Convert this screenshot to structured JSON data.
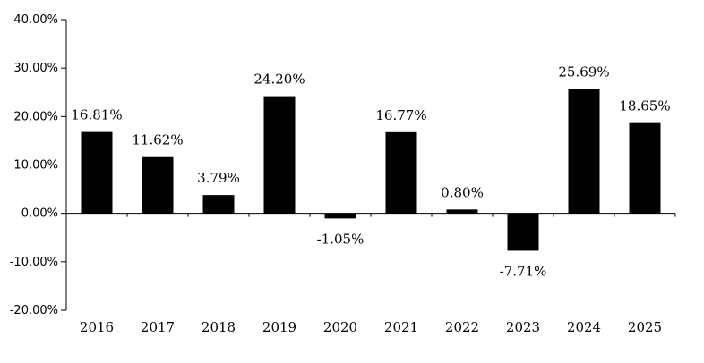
{
  "chart_data": {
    "type": "bar",
    "title": "",
    "xlabel": "",
    "ylabel": "",
    "categories": [
      "2016",
      "2017",
      "2018",
      "2019",
      "2020",
      "2021",
      "2022",
      "2023",
      "2024",
      "2025"
    ],
    "values": [
      16.81,
      11.62,
      3.79,
      24.2,
      -1.05,
      16.77,
      0.8,
      -7.71,
      25.69,
      18.65
    ],
    "data_labels": [
      "16.81%",
      "11.62%",
      "3.79%",
      "24.20%",
      "-1.05%",
      "16.77%",
      "0.80%",
      "-7.71%",
      "25.69%",
      "18.65%"
    ],
    "ylim": [
      -20,
      40
    ],
    "yticks": [
      40,
      30,
      20,
      10,
      0,
      -10,
      -20
    ],
    "ytick_labels": [
      "40.00%",
      "30.00%",
      "20.00%",
      "10.00%",
      "0.00%",
      "-10.00%",
      "-20.00%"
    ],
    "grid": false,
    "legend": "none",
    "bar_color": "#000000"
  }
}
